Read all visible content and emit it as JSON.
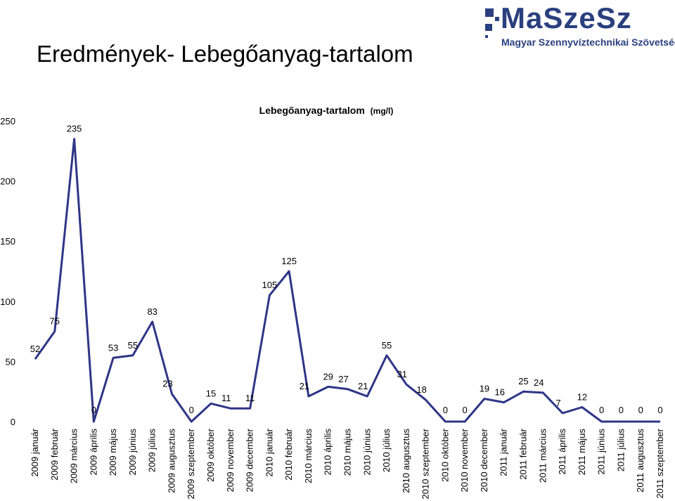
{
  "header": {
    "title": "Eredmények- Lebegőanyag-tartalom",
    "logo_name": "MaSzeSz",
    "logo_subtitle": "Magyar Szennyvíztechnikai Szövetség"
  },
  "colors": {
    "line": "#2e3586",
    "logo": "#2a3f7e"
  },
  "chart_data": {
    "type": "line",
    "title": "Lebegőanyag-tartalom",
    "unit": "(mg/l)",
    "xlabel": "",
    "ylabel": "",
    "ylim": [
      0,
      250
    ],
    "yticks": [
      0,
      50,
      100,
      150,
      200,
      250
    ],
    "grid": false,
    "legend": "none",
    "categories": [
      "2009 január",
      "2009 február",
      "2009 március",
      "2009 április",
      "2009 május",
      "2009 június",
      "2009 július",
      "2009 augusztus",
      "2009 szeptember",
      "2009 október",
      "2009 november",
      "2009 december",
      "2010 január",
      "2010 február",
      "2010 március",
      "2010 április",
      "2010 május",
      "2010 június",
      "2010 július",
      "2010 augusztus",
      "2010 szeptember",
      "2010 október",
      "2010 november",
      "2010 december",
      "2011 január",
      "2011 február",
      "2011 március",
      "2011 április",
      "2011 május",
      "2011 június",
      "2011 július",
      "2011 augusztus",
      "2011 szeptember"
    ],
    "values": [
      52,
      75,
      235,
      0,
      53,
      55,
      83,
      23,
      0,
      15,
      11,
      11,
      105,
      125,
      21,
      29,
      27,
      21,
      55,
      31,
      18,
      0,
      0,
      19,
      16,
      25,
      24,
      7,
      12,
      0,
      0,
      0,
      0
    ]
  }
}
